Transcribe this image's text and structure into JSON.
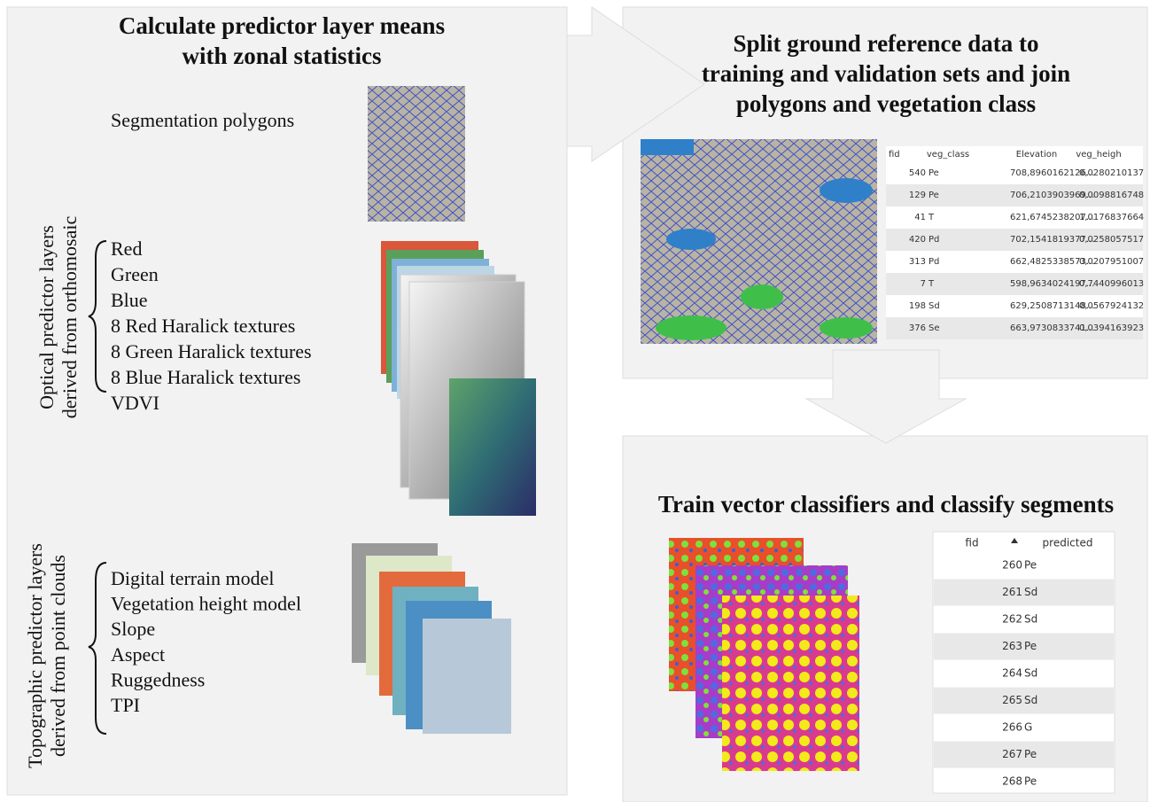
{
  "left_panel": {
    "title": [
      "Calculate predictor layer means",
      "with zonal statistics"
    ],
    "segmentation_label": "Segmentation polygons",
    "optical": {
      "group_label": [
        "Optical predictor layers",
        "derived from orthomosaic"
      ],
      "items": [
        "Red",
        "Green",
        "Blue",
        "8 Red Haralick textures",
        "8 Green Haralick textures",
        "8 Blue Haralick textures",
        "VDVI"
      ]
    },
    "topographic": {
      "group_label": [
        "Topographic predictor layers",
        "derived from point clouds"
      ],
      "items": [
        "Digital terrain model",
        "Vegetation height model",
        "Slope",
        "Aspect",
        "Ruggedness",
        "TPI"
      ]
    }
  },
  "top_right_panel": {
    "title": [
      "Split ground reference data to",
      "training and validation sets and join",
      "polygons and vegetation class"
    ],
    "table": {
      "columns": [
        "fid",
        "veg_class",
        "Elevation",
        "veg_heigh"
      ],
      "rows": [
        [
          "540",
          "Pe",
          "708,8960162126...",
          "0,0280210137"
        ],
        [
          "129",
          "Pe",
          "706,2103903969...",
          "0,0098816748"
        ],
        [
          "41",
          "T",
          "621,6745238207...",
          "1,0176837664"
        ],
        [
          "420",
          "Pd",
          "702,1541819377...",
          "0,0258057517"
        ],
        [
          "313",
          "Pd",
          "662,4825338573...",
          "0,0207951007"
        ],
        [
          "7",
          "T",
          "598,9634024197...",
          "0,7440996013"
        ],
        [
          "198",
          "Sd",
          "629,2508713148...",
          "0,0567924132"
        ],
        [
          "376",
          "Se",
          "663,9730833741...",
          "0,0394163923"
        ]
      ]
    }
  },
  "bottom_right_panel": {
    "title": "Train vector classifiers and classify segments",
    "table": {
      "columns": [
        "fid",
        "predicted"
      ],
      "rows": [
        [
          "260",
          "Pe"
        ],
        [
          "261",
          "Sd"
        ],
        [
          "262",
          "Sd"
        ],
        [
          "263",
          "Pe"
        ],
        [
          "264",
          "Sd"
        ],
        [
          "265",
          "Sd"
        ],
        [
          "266",
          "G"
        ],
        [
          "267",
          "Pe"
        ],
        [
          "268",
          "Pe"
        ]
      ]
    }
  }
}
